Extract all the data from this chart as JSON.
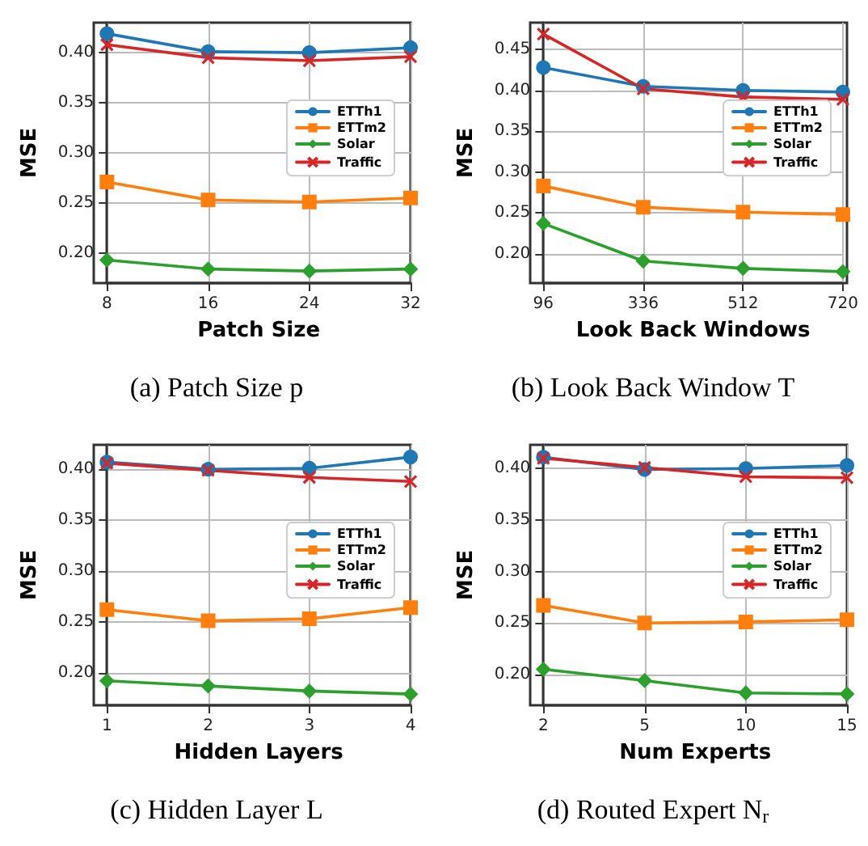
{
  "chart_data": [
    {
      "type": "line",
      "title": "(a) Patch Size p",
      "xlabel": "Patch Size",
      "ylabel": "MSE",
      "categories": [
        "8",
        "16",
        "24",
        "32"
      ],
      "ylim": [
        0.17,
        0.43
      ],
      "yticks": [
        {
          "value": 0.2,
          "label": "0.20"
        },
        {
          "value": 0.25,
          "label": "0.25"
        },
        {
          "value": 0.3,
          "label": "0.30"
        },
        {
          "value": 0.35,
          "label": "0.35"
        },
        {
          "value": 0.4,
          "label": "0.40"
        }
      ],
      "grid": true,
      "legend": "right",
      "series": [
        {
          "name": "ETTh1",
          "color": "#1f77b4",
          "marker": "circle",
          "values": [
            0.419,
            0.401,
            0.4,
            0.405
          ]
        },
        {
          "name": "ETTm2",
          "color": "#ff7f0e",
          "marker": "square",
          "values": [
            0.271,
            0.253,
            0.251,
            0.255
          ]
        },
        {
          "name": "Solar",
          "color": "#2ca02c",
          "marker": "diamond",
          "values": [
            0.193,
            0.184,
            0.182,
            0.184
          ]
        },
        {
          "name": "Traffic",
          "color": "#d62728",
          "marker": "cross",
          "values": [
            0.408,
            0.395,
            0.392,
            0.396
          ]
        }
      ]
    },
    {
      "type": "line",
      "title": "(b) Look Back Window T",
      "xlabel": "Look Back Windows",
      "ylabel": "MSE",
      "categories": [
        "96",
        "336",
        "512",
        "720"
      ],
      "ylim": [
        0.164,
        0.483
      ],
      "yticks": [
        {
          "value": 0.2,
          "label": "0.20"
        },
        {
          "value": 0.25,
          "label": "0.25"
        },
        {
          "value": 0.3,
          "label": "0.30"
        },
        {
          "value": 0.35,
          "label": "0.35"
        },
        {
          "value": 0.4,
          "label": "0.40"
        },
        {
          "value": 0.45,
          "label": "0.45"
        }
      ],
      "grid": true,
      "legend": "right",
      "series": [
        {
          "name": "ETTh1",
          "color": "#1f77b4",
          "marker": "circle",
          "values": [
            0.428,
            0.405,
            0.4,
            0.398
          ]
        },
        {
          "name": "ETTm2",
          "color": "#ff7f0e",
          "marker": "square",
          "values": [
            0.283,
            0.257,
            0.251,
            0.248
          ]
        },
        {
          "name": "Solar",
          "color": "#2ca02c",
          "marker": "diamond",
          "values": [
            0.237,
            0.191,
            0.182,
            0.178
          ]
        },
        {
          "name": "Traffic",
          "color": "#d62728",
          "marker": "cross",
          "values": [
            0.469,
            0.402,
            0.392,
            0.389
          ]
        }
      ]
    },
    {
      "type": "line",
      "title": "(c) Hidden Layer L",
      "xlabel": "Hidden Layers",
      "ylabel": "MSE",
      "categories": [
        "1",
        "2",
        "3",
        "4"
      ],
      "ylim": [
        0.168,
        0.424
      ],
      "yticks": [
        {
          "value": 0.2,
          "label": "0.20"
        },
        {
          "value": 0.25,
          "label": "0.25"
        },
        {
          "value": 0.3,
          "label": "0.30"
        },
        {
          "value": 0.35,
          "label": "0.35"
        },
        {
          "value": 0.4,
          "label": "0.40"
        }
      ],
      "grid": true,
      "legend": "right",
      "series": [
        {
          "name": "ETTh1",
          "color": "#1f77b4",
          "marker": "circle",
          "values": [
            0.407,
            0.4,
            0.401,
            0.412
          ]
        },
        {
          "name": "ETTm2",
          "color": "#ff7f0e",
          "marker": "square",
          "values": [
            0.262,
            0.251,
            0.253,
            0.264
          ]
        },
        {
          "name": "Solar",
          "color": "#2ca02c",
          "marker": "diamond",
          "values": [
            0.192,
            0.187,
            0.182,
            0.179
          ]
        },
        {
          "name": "Traffic",
          "color": "#d62728",
          "marker": "cross",
          "values": [
            0.406,
            0.399,
            0.392,
            0.388
          ]
        }
      ]
    },
    {
      "type": "line",
      "title": "(d) Routed Expert N$_{r}$",
      "xlabel": "Num Experts",
      "ylabel": "MSE",
      "categories": [
        "2",
        "5",
        "10",
        "15"
      ],
      "ylim": [
        0.17,
        0.423
      ],
      "yticks": [
        {
          "value": 0.2,
          "label": "0.20"
        },
        {
          "value": 0.25,
          "label": "0.25"
        },
        {
          "value": 0.3,
          "label": "0.30"
        },
        {
          "value": 0.35,
          "label": "0.35"
        },
        {
          "value": 0.4,
          "label": "0.40"
        }
      ],
      "grid": true,
      "legend": "right",
      "series": [
        {
          "name": "ETTh1",
          "color": "#1f77b4",
          "marker": "circle",
          "values": [
            0.411,
            0.399,
            0.4,
            0.403
          ]
        },
        {
          "name": "ETTm2",
          "color": "#ff7f0e",
          "marker": "square",
          "values": [
            0.267,
            0.25,
            0.251,
            0.253
          ]
        },
        {
          "name": "Solar",
          "color": "#2ca02c",
          "marker": "diamond",
          "values": [
            0.205,
            0.194,
            0.182,
            0.181
          ]
        },
        {
          "name": "Traffic",
          "color": "#d62728",
          "marker": "cross",
          "values": [
            0.41,
            0.401,
            0.392,
            0.391
          ]
        }
      ]
    }
  ]
}
